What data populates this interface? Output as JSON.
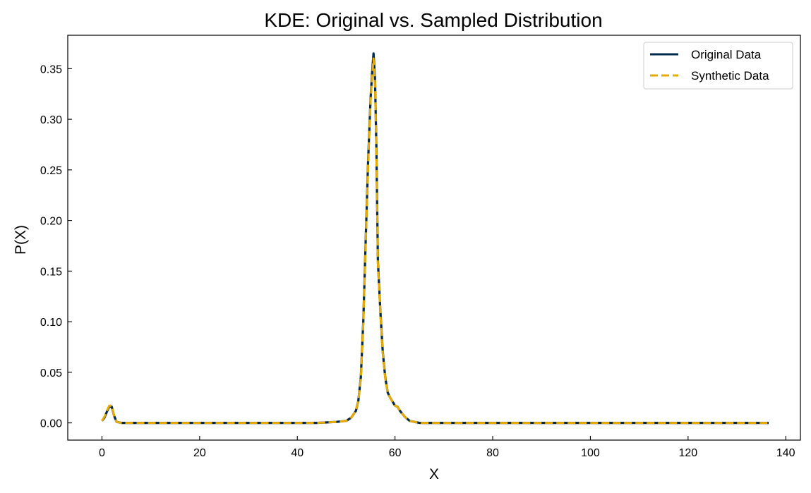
{
  "chart_data": {
    "type": "line",
    "title": "KDE: Original vs. Sampled Distribution",
    "xlabel": "X",
    "ylabel": "P(X)",
    "xlim": [
      -7,
      143
    ],
    "ylim": [
      -0.017,
      0.383
    ],
    "xticks": [
      "0",
      "20",
      "40",
      "60",
      "80",
      "100",
      "120",
      "140"
    ],
    "yticks": [
      "0.00",
      "0.05",
      "0.10",
      "0.15",
      "0.20",
      "0.25",
      "0.30",
      "0.35"
    ],
    "grid": false,
    "legend_position": "top-right",
    "x": [
      0,
      0.5,
      1,
      1.5,
      2,
      2.5,
      3,
      4,
      6,
      10,
      20,
      30,
      38,
      44,
      48,
      50,
      51,
      52,
      52.5,
      53,
      53.5,
      54,
      54.5,
      55,
      55.3,
      55.6,
      55.9,
      56.2,
      56.5,
      57,
      57.5,
      58,
      58.5,
      59,
      60,
      60.5,
      61,
      62,
      63,
      64,
      65,
      66,
      70,
      80,
      100,
      120,
      136.5
    ],
    "series": [
      {
        "name": "Original Data",
        "color": "#002a4e",
        "style": "solid",
        "y": [
          0.002,
          0.005,
          0.011,
          0.016,
          0.016,
          0.007,
          0.001,
          0.0,
          0.0,
          0.0,
          0.0,
          0.0,
          0.0,
          0.0,
          0.001,
          0.002,
          0.005,
          0.012,
          0.022,
          0.045,
          0.1,
          0.18,
          0.26,
          0.32,
          0.345,
          0.365,
          0.34,
          0.27,
          0.16,
          0.11,
          0.07,
          0.045,
          0.03,
          0.025,
          0.017,
          0.016,
          0.012,
          0.006,
          0.002,
          0.001,
          0.0,
          0.0,
          0.0,
          0.0,
          0.0,
          0.0,
          0.0
        ]
      },
      {
        "name": "Synthetic Data",
        "color": "#e8ab00",
        "style": "dashed",
        "y": [
          0.002,
          0.006,
          0.012,
          0.017,
          0.017,
          0.007,
          0.001,
          0.0,
          0.0,
          0.0,
          0.0,
          0.0,
          0.0,
          0.0,
          0.001,
          0.002,
          0.005,
          0.012,
          0.022,
          0.044,
          0.098,
          0.178,
          0.257,
          0.318,
          0.342,
          0.36,
          0.336,
          0.268,
          0.158,
          0.109,
          0.069,
          0.044,
          0.03,
          0.025,
          0.017,
          0.016,
          0.012,
          0.006,
          0.002,
          0.001,
          0.0,
          0.0,
          0.0,
          0.0,
          0.0,
          0.0,
          0.0
        ]
      }
    ]
  }
}
